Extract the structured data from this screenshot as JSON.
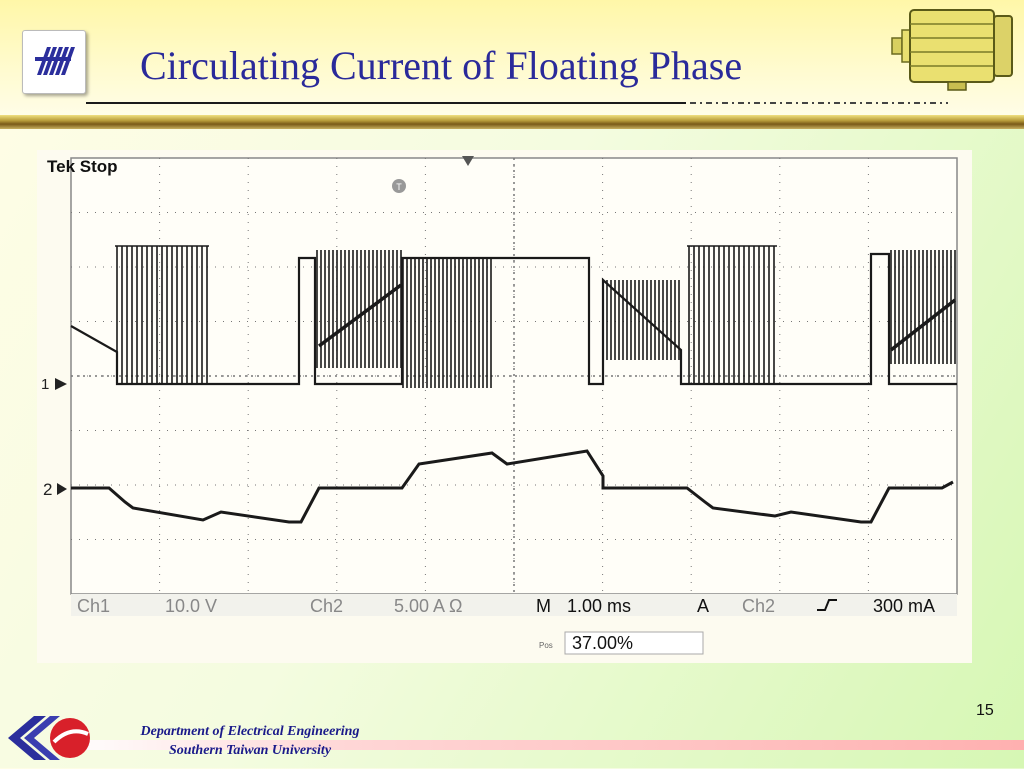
{
  "slide": {
    "title": "Circulating Current of  Floating Phase",
    "page_number": "15"
  },
  "footer": {
    "department": "Department of Electrical Engineering",
    "university": "Southern Taiwan University"
  },
  "scope": {
    "status": "Tek Stop",
    "ch1_marker": "1",
    "ch2_marker": "2",
    "ch1_label": "Ch1",
    "ch1_scale": "10.0 V",
    "ch2_label": "Ch2",
    "ch2_scale": "5.00 A Ω",
    "timebase_label": "M",
    "timebase": "1.00 ms",
    "trigger_label": "A",
    "trigger_source": "Ch2",
    "trigger_level": "300 mA",
    "position_label": "Pos",
    "trigger_position": "37.00%",
    "colors": {
      "trace": "#1a1a1a",
      "grid": "#777777",
      "background": "#fdfbf0"
    }
  }
}
